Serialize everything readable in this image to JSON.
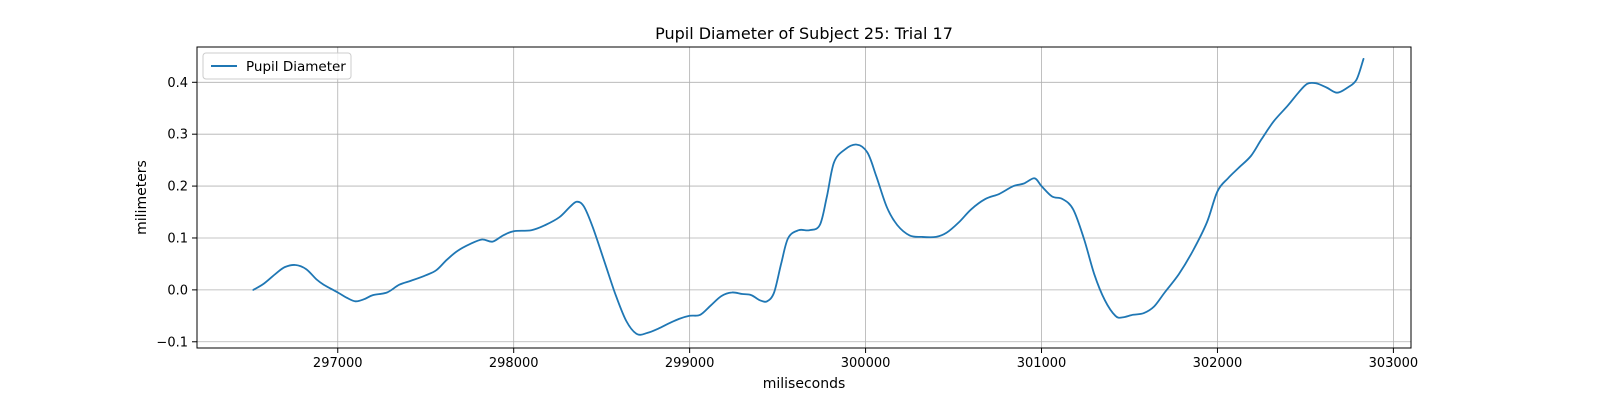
{
  "chart_data": {
    "type": "line",
    "title": "Pupil Diameter of Subject 25: Trial 17",
    "xlabel": "miliseconds",
    "ylabel": "milimeters",
    "xlim": [
      296200,
      303100
    ],
    "ylim": [
      -0.112,
      0.468
    ],
    "xticks": [
      297000,
      298000,
      299000,
      300000,
      301000,
      302000,
      303000
    ],
    "yticks": [
      -0.1,
      0.0,
      0.1,
      0.2,
      0.3,
      0.4
    ],
    "xtick_labels": [
      "297000",
      "298000",
      "299000",
      "300000",
      "301000",
      "302000",
      "303000"
    ],
    "ytick_labels": [
      "−0.1",
      "0.0",
      "0.1",
      "0.2",
      "0.3",
      "0.4"
    ],
    "grid": true,
    "legend_position": "top-left",
    "series": [
      {
        "name": "Pupil Diameter",
        "color": "#1f77b4",
        "points": [
          [
            296520,
            0.0
          ],
          [
            296580,
            0.012
          ],
          [
            296650,
            0.032
          ],
          [
            296700,
            0.044
          ],
          [
            296760,
            0.048
          ],
          [
            296820,
            0.04
          ],
          [
            296880,
            0.02
          ],
          [
            296920,
            0.01
          ],
          [
            297000,
            -0.005
          ],
          [
            297050,
            -0.015
          ],
          [
            297100,
            -0.022
          ],
          [
            297150,
            -0.018
          ],
          [
            297200,
            -0.01
          ],
          [
            297280,
            -0.005
          ],
          [
            297350,
            0.01
          ],
          [
            297420,
            0.018
          ],
          [
            297500,
            0.028
          ],
          [
            297560,
            0.038
          ],
          [
            297620,
            0.058
          ],
          [
            297680,
            0.075
          ],
          [
            297750,
            0.088
          ],
          [
            297820,
            0.097
          ],
          [
            297880,
            0.093
          ],
          [
            297940,
            0.105
          ],
          [
            298000,
            0.113
          ],
          [
            298100,
            0.115
          ],
          [
            298180,
            0.125
          ],
          [
            298260,
            0.14
          ],
          [
            298320,
            0.16
          ],
          [
            298360,
            0.17
          ],
          [
            298400,
            0.16
          ],
          [
            298450,
            0.12
          ],
          [
            298520,
            0.05
          ],
          [
            298580,
            -0.01
          ],
          [
            298640,
            -0.06
          ],
          [
            298700,
            -0.085
          ],
          [
            298760,
            -0.083
          ],
          [
            298820,
            -0.075
          ],
          [
            298880,
            -0.065
          ],
          [
            298940,
            -0.056
          ],
          [
            299000,
            -0.05
          ],
          [
            299060,
            -0.048
          ],
          [
            299120,
            -0.03
          ],
          [
            299180,
            -0.012
          ],
          [
            299240,
            -0.005
          ],
          [
            299300,
            -0.008
          ],
          [
            299350,
            -0.01
          ],
          [
            299400,
            -0.02
          ],
          [
            299440,
            -0.022
          ],
          [
            299480,
            -0.005
          ],
          [
            299520,
            0.05
          ],
          [
            299560,
            0.1
          ],
          [
            299620,
            0.115
          ],
          [
            299680,
            0.115
          ],
          [
            299740,
            0.125
          ],
          [
            299780,
            0.18
          ],
          [
            299820,
            0.245
          ],
          [
            299880,
            0.27
          ],
          [
            299950,
            0.28
          ],
          [
            300010,
            0.265
          ],
          [
            300060,
            0.22
          ],
          [
            300120,
            0.16
          ],
          [
            300180,
            0.125
          ],
          [
            300250,
            0.105
          ],
          [
            300320,
            0.102
          ],
          [
            300400,
            0.102
          ],
          [
            300460,
            0.11
          ],
          [
            300530,
            0.13
          ],
          [
            300600,
            0.155
          ],
          [
            300680,
            0.175
          ],
          [
            300760,
            0.185
          ],
          [
            300840,
            0.2
          ],
          [
            300900,
            0.205
          ],
          [
            300960,
            0.215
          ],
          [
            301000,
            0.2
          ],
          [
            301060,
            0.18
          ],
          [
            301120,
            0.175
          ],
          [
            301180,
            0.155
          ],
          [
            301240,
            0.1
          ],
          [
            301300,
            0.03
          ],
          [
            301360,
            -0.02
          ],
          [
            301420,
            -0.05
          ],
          [
            301460,
            -0.053
          ],
          [
            301520,
            -0.048
          ],
          [
            301580,
            -0.045
          ],
          [
            301640,
            -0.032
          ],
          [
            301700,
            -0.005
          ],
          [
            301780,
            0.03
          ],
          [
            301860,
            0.075
          ],
          [
            301940,
            0.13
          ],
          [
            302000,
            0.19
          ],
          [
            302060,
            0.215
          ],
          [
            302120,
            0.235
          ],
          [
            302190,
            0.258
          ],
          [
            302250,
            0.29
          ],
          [
            302320,
            0.325
          ],
          [
            302400,
            0.355
          ],
          [
            302460,
            0.38
          ],
          [
            302510,
            0.397
          ],
          [
            302560,
            0.398
          ],
          [
            302620,
            0.39
          ],
          [
            302680,
            0.38
          ],
          [
            302740,
            0.39
          ],
          [
            302790,
            0.405
          ],
          [
            302830,
            0.445
          ]
        ]
      }
    ]
  }
}
